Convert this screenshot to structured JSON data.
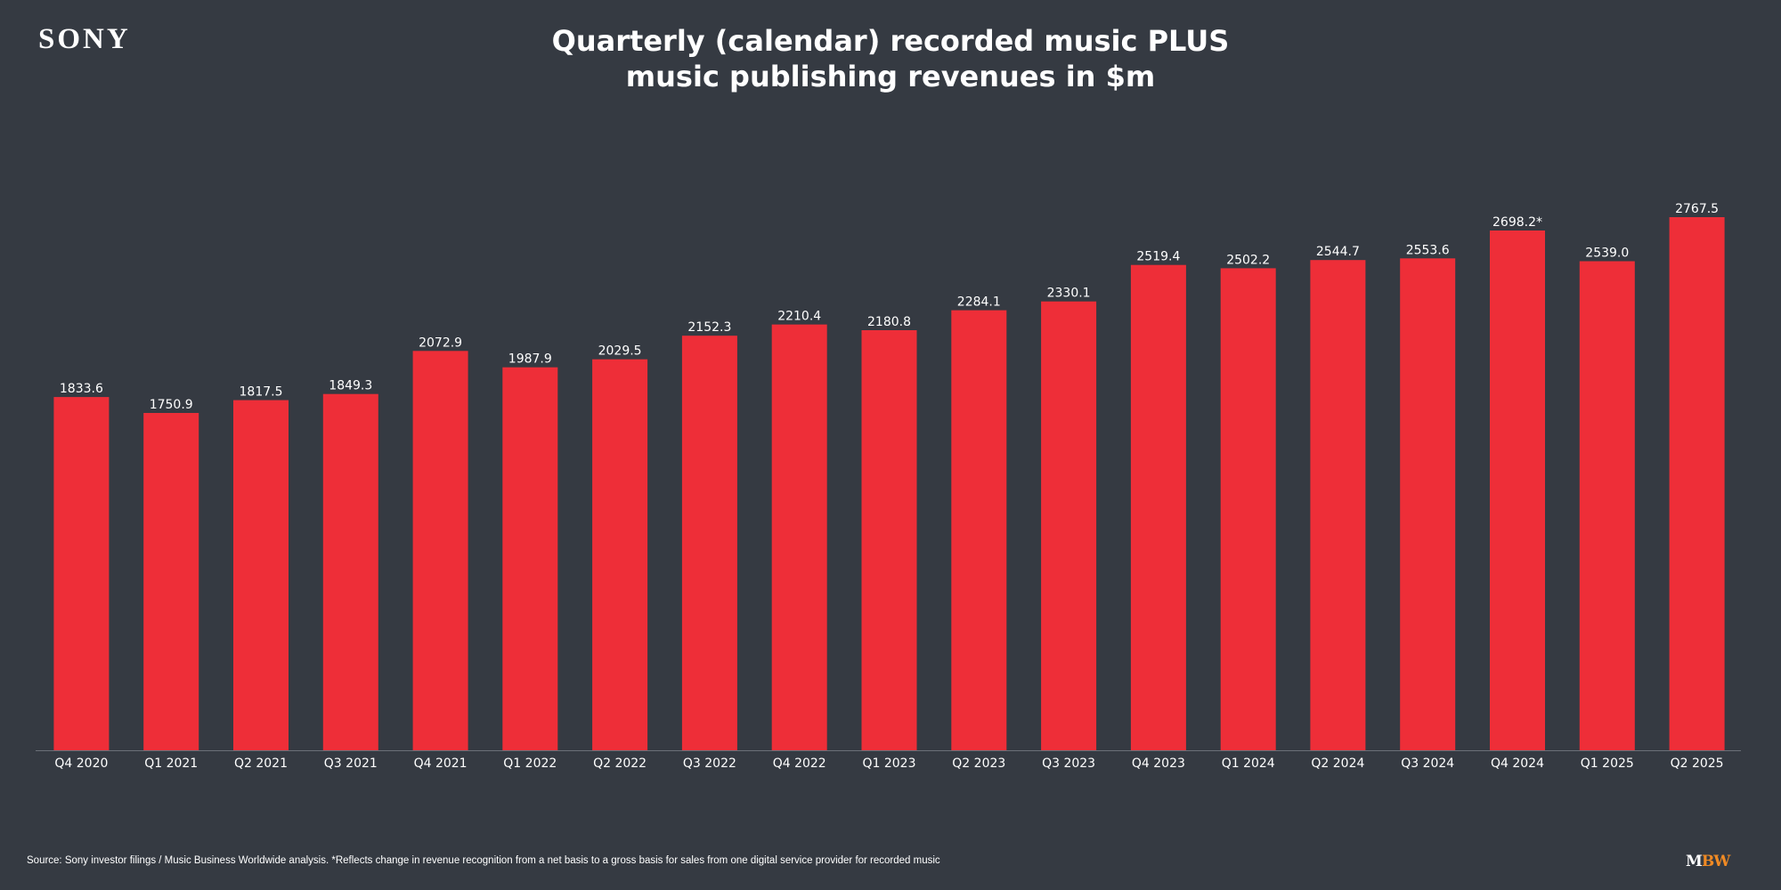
{
  "brand": {
    "logo_text": "SONY"
  },
  "footer": {
    "source_text": "Source: Sony investor filings / Music Business Worldwide analysis. *Reflects change in revenue recognition from a net basis to a gross basis for sales from one digital service provider for recorded music",
    "mbw_logo_m": "M",
    "mbw_logo_bw": "BW"
  },
  "colors": {
    "background": "#353a42",
    "bar": "#ee2e38",
    "text": "#ffffff",
    "mbw_accent": "#f08a24"
  },
  "chart_data": {
    "type": "bar",
    "title_line1": "Quarterly (calendar) recorded music PLUS",
    "title_line2": "music publishing revenues in $m",
    "xlabel": "",
    "ylabel": "",
    "ylim": [
      0,
      2767.5
    ],
    "grid": false,
    "categories": [
      "Q4 2020",
      "Q1 2021",
      "Q2 2021",
      "Q3 2021",
      "Q4 2021",
      "Q1 2022",
      "Q2 2022",
      "Q3 2022",
      "Q4 2022",
      "Q1 2023",
      "Q2 2023",
      "Q3 2023",
      "Q4 2023",
      "Q1 2024",
      "Q2 2024",
      "Q3 2024",
      "Q4 2024",
      "Q1 2025",
      "Q2 2025"
    ],
    "values": [
      1833.6,
      1750.9,
      1817.5,
      1849.3,
      2072.9,
      1987.9,
      2029.5,
      2152.3,
      2210.4,
      2180.8,
      2284.1,
      2330.1,
      2519.4,
      2502.2,
      2544.7,
      2553.6,
      2698.2,
      2539.0,
      2767.5
    ],
    "data_labels": [
      "1833.6",
      "1750.9",
      "1817.5",
      "1849.3",
      "2072.9",
      "1987.9",
      "2029.5",
      "2152.3",
      "2210.4",
      "2180.8",
      "2284.1",
      "2330.1",
      "2519.4",
      "2502.2",
      "2544.7",
      "2553.6",
      "2698.2*",
      "2539.0",
      "2767.5"
    ]
  }
}
